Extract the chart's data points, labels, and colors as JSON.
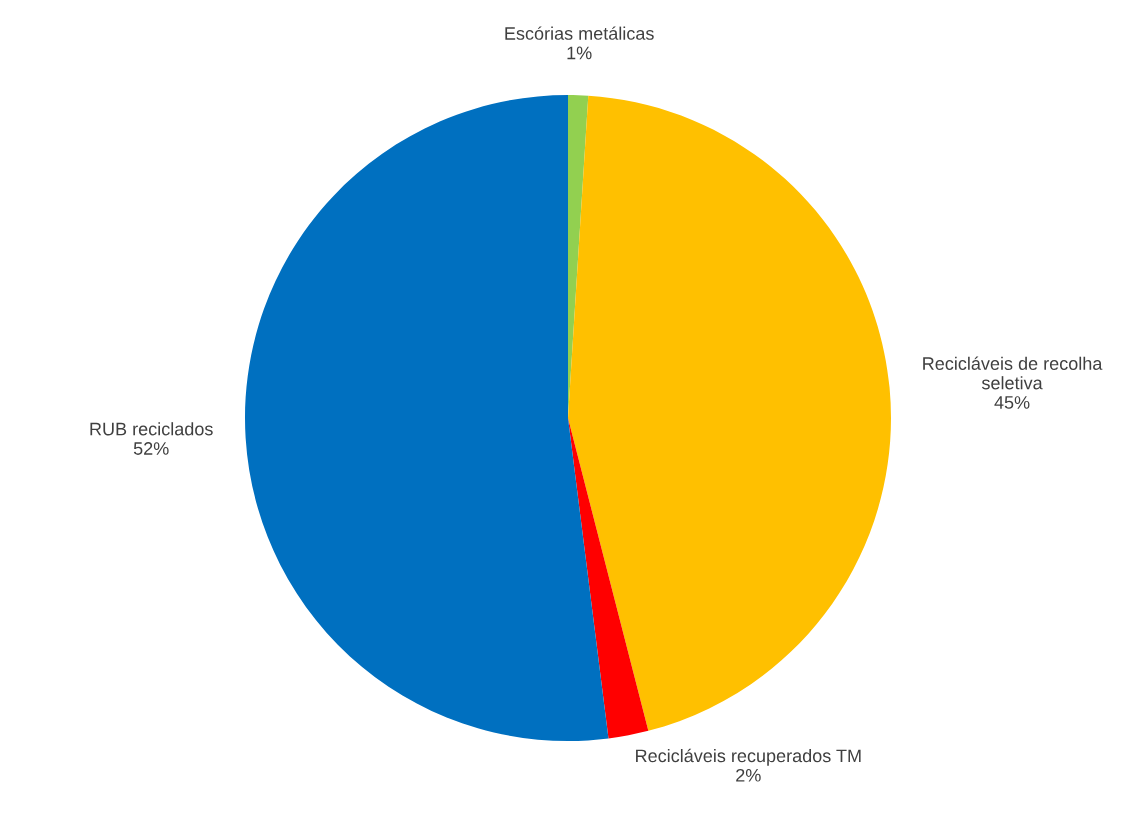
{
  "chart_data": {
    "type": "pie",
    "categories": [
      "Escórias metálicas",
      "Recicláveis de recolha seletiva",
      "Recicláveis recuperados TM",
      "RUB reciclados"
    ],
    "values": [
      1,
      45,
      2,
      52
    ],
    "colors": [
      "#92d050",
      "#ffc000",
      "#ff0000",
      "#0070c0"
    ],
    "value_labels": [
      "1%",
      "45%",
      "2%",
      "52%"
    ],
    "legend": false
  }
}
